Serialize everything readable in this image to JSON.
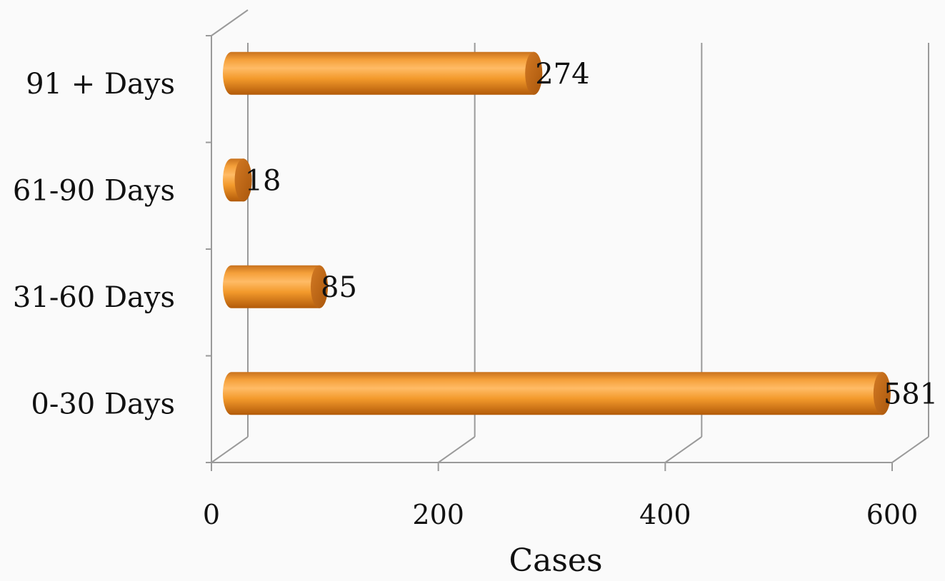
{
  "chart_data": {
    "type": "bar",
    "orientation": "horizontal",
    "style": "3d-cylinder",
    "categories": [
      "0-30 Days",
      "31-60 Days",
      "61-90 Days",
      "91 + Days"
    ],
    "values": [
      581,
      85,
      18,
      274
    ],
    "data_labels": [
      "581",
      "85",
      "18",
      "274"
    ],
    "xlabel": "Cases",
    "ylabel": "",
    "title": "",
    "xlim": [
      0,
      600
    ],
    "x_ticks": [
      0,
      200,
      400,
      600
    ],
    "x_tick_labels": [
      "0",
      "200",
      "400",
      "600"
    ],
    "grid": "vertical",
    "legend": "none",
    "colors": {
      "bar_main": "#f39a2c",
      "bar_light": "#ffb962",
      "bar_dark": "#b25a09",
      "bar_cap": "#c26b1b",
      "grid": "#9a9a9a",
      "text": "#111111",
      "background": "#fafafa"
    }
  }
}
